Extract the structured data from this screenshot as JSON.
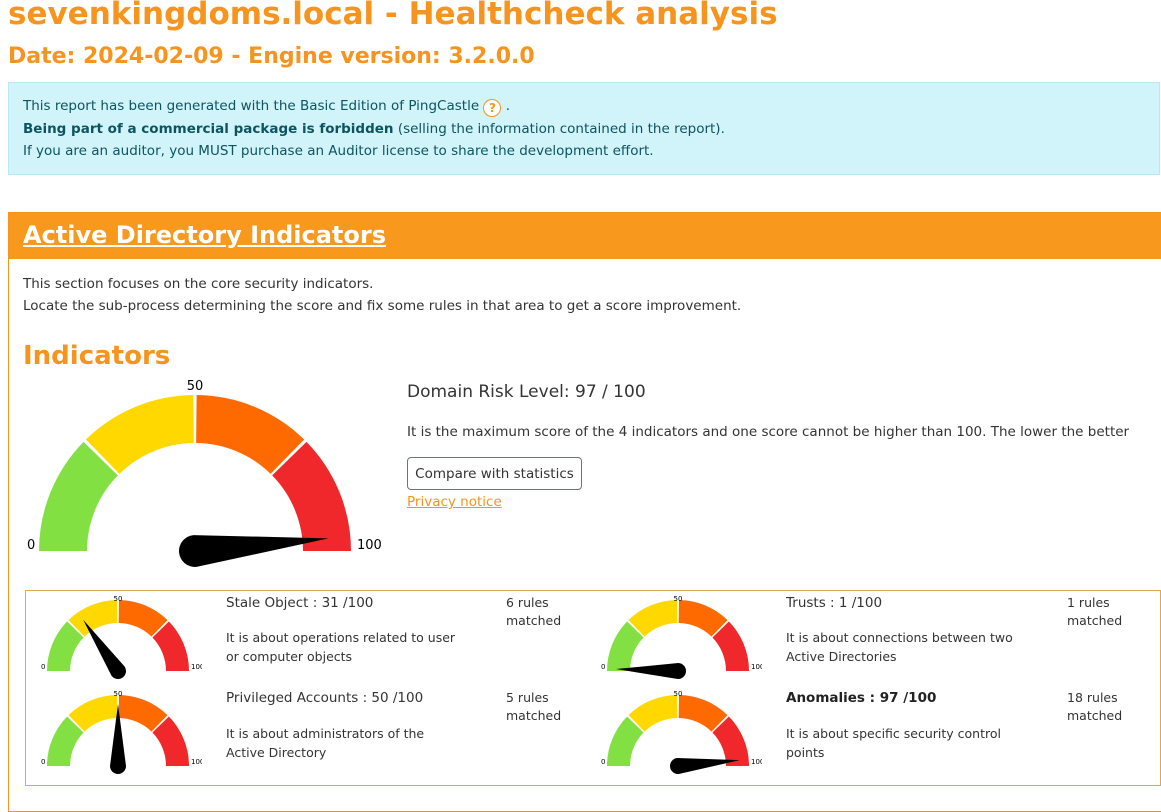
{
  "header": {
    "title": "sevenkingdoms.local - Healthcheck analysis",
    "subtitle": "Date: 2024-02-09 - Engine version: 3.2.0.0"
  },
  "license": {
    "line1_prefix": "This report has been generated with the Basic Edition of PingCastle",
    "line1_suffix": ".",
    "help_glyph": "?",
    "line2_bold": "Being part of a commercial package is forbidden",
    "line2_rest": " (selling the information contained in the report).",
    "line3": "If you are an auditor, you MUST purchase an Auditor license to share the development effort."
  },
  "section": {
    "title": "Active Directory Indicators",
    "desc1": "This section focuses on the core security indicators.",
    "desc2": "Locate the sub-process determining the score and fix some rules in that area to get a score improvement.",
    "indicators_heading": "Indicators"
  },
  "gauge_labels": {
    "min": "0",
    "mid": "50",
    "max": "100"
  },
  "gauge_colors": [
    "#83e043",
    "#ffd800",
    "#ff6a00",
    "#f0282b"
  ],
  "domain_risk": {
    "title": "Domain Risk Level: 97 / 100",
    "score": 97,
    "description": "It is the maximum score of the 4 indicators and one score cannot be higher than 100. The lower the better",
    "compare_button": "Compare with statistics",
    "privacy_link": "Privacy notice"
  },
  "indicators": [
    {
      "title": "Stale Object : 31 /100",
      "score": 31,
      "rules_line1": "6 rules",
      "rules_line2": "matched",
      "description": "It is about operations related to user or computer objects",
      "bold": false
    },
    {
      "title": "Trusts : 1 /100",
      "score": 1,
      "rules_line1": "1 rules",
      "rules_line2": "matched",
      "description": "It is about connections between two Active Directories",
      "bold": false
    },
    {
      "title": "Privileged Accounts : 50 /100",
      "score": 50,
      "rules_line1": "5 rules",
      "rules_line2": "matched",
      "description": "It is about administrators of the Active Directory",
      "bold": false
    },
    {
      "title": "Anomalies : 97 /100",
      "score": 97,
      "rules_line1": "18 rules",
      "rules_line2": "matched",
      "description": "It is about specific security control points",
      "bold": true
    }
  ]
}
